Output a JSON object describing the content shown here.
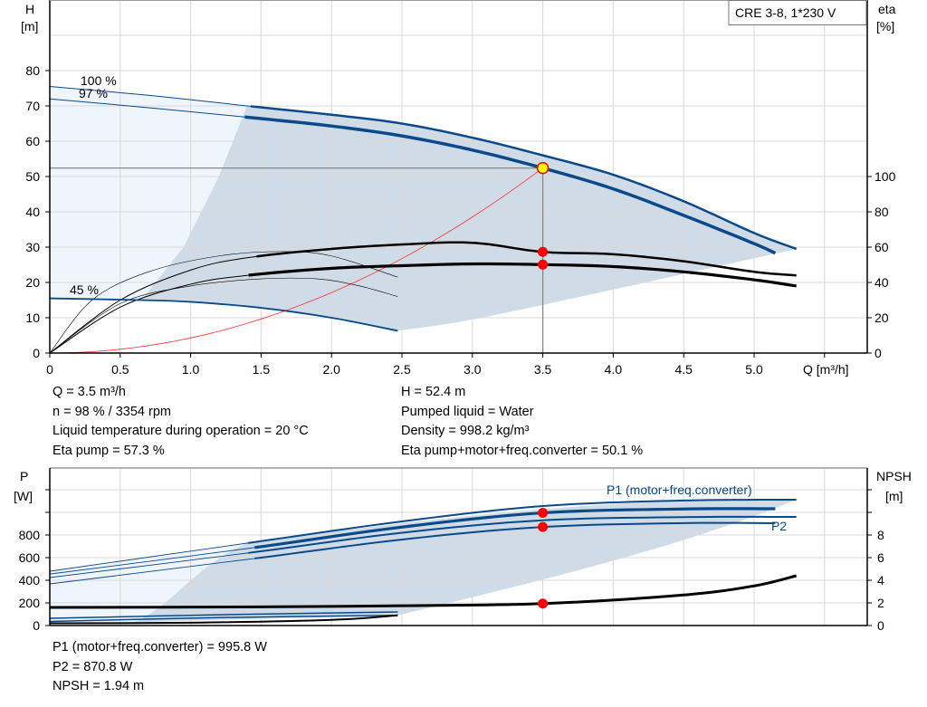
{
  "chart_data": [
    {
      "type": "line",
      "title": "CRE 3-8, 1*230 V",
      "xlabel": "Q [m³/h]",
      "ylabel_left": [
        "H",
        "[m]"
      ],
      "ylabel_right": [
        "eta",
        "[%]"
      ],
      "xlim": [
        0,
        5.8
      ],
      "ylim_left": [
        0,
        100
      ],
      "ylim_right": [
        0,
        200
      ],
      "x_ticks": [
        "0",
        "0.5",
        "1.0",
        "1.5",
        "2.0",
        "2.5",
        "3.0",
        "3.5",
        "4.0",
        "4.5",
        "5.0"
      ],
      "y_ticks_left": [
        "0",
        "10",
        "20",
        "30",
        "40",
        "50",
        "60",
        "70",
        "80"
      ],
      "y_ticks_right": [
        "0",
        "20",
        "40",
        "60",
        "80",
        "100"
      ],
      "grid": true,
      "curve_labels": [
        "100 %",
        "97 %",
        "45 %"
      ],
      "head_curves": [
        {
          "name": "100 %",
          "points": [
            [
              0,
              75.5
            ],
            [
              0.7,
              73
            ],
            [
              1.4,
              70
            ],
            [
              2.0,
              67.5
            ],
            [
              2.5,
              65
            ],
            [
              3.0,
              61
            ],
            [
              3.5,
              56
            ],
            [
              4.0,
              50.5
            ],
            [
              4.5,
              43
            ],
            [
              5.0,
              34
            ],
            [
              5.3,
              29.5
            ]
          ]
        },
        {
          "name": "97 %",
          "points": [
            [
              0,
              72
            ],
            [
              0.7,
              69.5
            ],
            [
              1.4,
              66.8
            ],
            [
              2.0,
              64.3
            ],
            [
              2.5,
              61.5
            ],
            [
              3.0,
              57.5
            ],
            [
              3.5,
              52.4
            ],
            [
              4.0,
              46.5
            ],
            [
              4.5,
              39
            ],
            [
              5.0,
              31
            ],
            [
              5.15,
              28.3
            ]
          ]
        },
        {
          "name": "45 %",
          "points": [
            [
              0,
              15.5
            ],
            [
              0.65,
              15
            ],
            [
              1.0,
              14.5
            ],
            [
              1.5,
              12.8
            ],
            [
              2.0,
              10
            ],
            [
              2.47,
              6.3
            ]
          ]
        }
      ],
      "eta_curves": [
        {
          "points": [
            [
              0,
              0
            ],
            [
              0.5,
              30
            ],
            [
              1.0,
              47
            ],
            [
              1.4,
              54
            ],
            [
              2.0,
              59
            ],
            [
              2.5,
              61.5
            ],
            [
              3.0,
              62.5
            ],
            [
              3.5,
              57.3
            ],
            [
              4.0,
              56
            ],
            [
              4.5,
              52
            ],
            [
              5.0,
              46
            ],
            [
              5.3,
              44
            ]
          ]
        },
        {
          "points": [
            [
              0,
              0
            ],
            [
              0.5,
              26
            ],
            [
              1.0,
              39
            ],
            [
              1.4,
              44
            ],
            [
              2.0,
              48
            ],
            [
              2.5,
              49.5
            ],
            [
              3.0,
              50.5
            ],
            [
              3.5,
              50.1
            ],
            [
              4.0,
              49
            ],
            [
              4.5,
              46
            ],
            [
              5.0,
              41.5
            ],
            [
              5.3,
              38
            ]
          ]
        },
        {
          "points": [
            [
              0,
              0
            ],
            [
              0.3,
              30
            ],
            [
              0.7,
              46
            ],
            [
              1.2,
              55
            ],
            [
              1.65,
              57.5
            ],
            [
              2.0,
              55
            ],
            [
              2.47,
              43
            ]
          ]
        },
        {
          "points": [
            [
              0,
              0
            ],
            [
              0.5,
              28
            ],
            [
              1.0,
              38
            ],
            [
              1.5,
              42
            ],
            [
              1.9,
              42
            ],
            [
              2.2,
              38
            ],
            [
              2.47,
              32
            ]
          ]
        }
      ],
      "system_curve": {
        "k": 4.28,
        "qmax": 3.5
      },
      "operating_point": {
        "Q": 3.5,
        "H": 52.4,
        "eta_pump": 57.3,
        "eta_total": 50.1
      },
      "colors": {
        "curve": "#0a4a8a",
        "shade_dark": "#cfdbe6",
        "shade_light": "#eef5fc",
        "system": "#ff3030",
        "point": "#ff0000",
        "op_fill": "#ffff00"
      }
    },
    {
      "type": "line",
      "xlim": [
        0,
        5.8
      ],
      "ylim_left": [
        0,
        1400
      ],
      "ylim_right": [
        0,
        14
      ],
      "ylabel_left": [
        "P",
        "[W]"
      ],
      "ylabel_right": [
        "NPSH",
        "[m]"
      ],
      "y_ticks_left": [
        "0",
        "200",
        "400",
        "600",
        "800"
      ],
      "y_ticks_right": [
        "0",
        "2",
        "4",
        "6",
        "8"
      ],
      "series_labels": [
        "P1 (motor+freq.converter)",
        "P2"
      ],
      "power_curves": [
        {
          "name": "P1 (motor+freq.converter)",
          "points": [
            [
              0,
              480
            ],
            [
              1.4,
              728
            ],
            [
              2.5,
              920
            ],
            [
              3.5,
              1056
            ],
            [
              4.5,
              1105
            ],
            [
              5.3,
              1112
            ]
          ]
        },
        {
          "points": [
            [
              0,
              455
            ],
            [
              1.4,
              680
            ],
            [
              2.5,
              870
            ],
            [
              3.5,
              995.8
            ],
            [
              4.5,
              1030
            ],
            [
              5.15,
              1032
            ]
          ]
        },
        {
          "points": [
            [
              0,
              424
            ],
            [
              1.4,
              640
            ],
            [
              2.5,
              820
            ],
            [
              3.5,
              930
            ],
            [
              4.5,
              958
            ],
            [
              5.3,
              960
            ]
          ]
        },
        {
          "name": "P2",
          "points": [
            [
              0,
              368
            ],
            [
              1.4,
              584
            ],
            [
              2.5,
              760
            ],
            [
              3.5,
              870.8
            ],
            [
              4.5,
              905
            ],
            [
              5.15,
              904
            ]
          ]
        },
        {
          "points": [
            [
              0,
              64
            ],
            [
              1.2,
              95
            ],
            [
              2.47,
              120
            ]
          ]
        },
        {
          "points": [
            [
              0,
              36
            ],
            [
              1.2,
              70
            ],
            [
              2.47,
              90
            ]
          ]
        }
      ],
      "npsh_curves": [
        {
          "points": [
            [
              0,
              1.6
            ],
            [
              1.5,
              1.65
            ],
            [
              2.5,
              1.75
            ],
            [
              3.5,
              1.94
            ],
            [
              4.5,
              2.7
            ],
            [
              5.0,
              3.5
            ],
            [
              5.3,
              4.4
            ]
          ]
        },
        {
          "points": [
            [
              0,
              0.2
            ],
            [
              1.0,
              0.25
            ],
            [
              2.0,
              0.5
            ],
            [
              2.47,
              0.9
            ]
          ]
        }
      ],
      "operating_point": {
        "P1": 995.8,
        "P2": 870.8,
        "NPSH": 1.94
      }
    }
  ],
  "info_top_left": [
    "Q = 3.5 m³/h",
    "n = 98 % / 3354 rpm",
    "Liquid temperature during operation = 20 °C",
    "Eta pump = 57.3 %"
  ],
  "info_top_right": [
    "H = 52.4 m",
    "Pumped liquid = Water",
    "Density = 998.2 kg/m³",
    "Eta pump+motor+freq.converter = 50.1 %"
  ],
  "info_bottom": [
    "P1 (motor+freq.converter) = 995.8 W",
    "P2 = 870.8 W",
    "NPSH = 1.94 m"
  ]
}
